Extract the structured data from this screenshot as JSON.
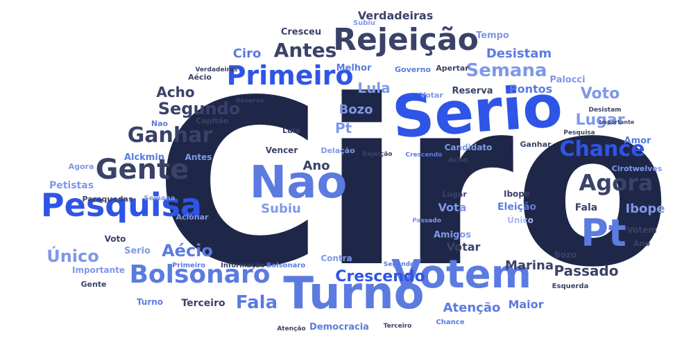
{
  "words": [
    {
      "text": "Ciro",
      "color": "navy"
    },
    {
      "text": "Serio",
      "color": "royal"
    },
    {
      "text": "Turno",
      "color": "mid"
    },
    {
      "text": "Nao",
      "color": "mid"
    },
    {
      "text": "Votem",
      "color": "mid"
    },
    {
      "text": "Pt",
      "color": "mid"
    },
    {
      "text": "Pesquisa",
      "color": "royal"
    },
    {
      "text": "Rejeição",
      "color": "slate"
    },
    {
      "text": "Primeiro",
      "color": "royal"
    },
    {
      "text": "Gente",
      "color": "slate"
    },
    {
      "text": "Bolsonaro",
      "color": "mid"
    },
    {
      "text": "Agora",
      "color": "slate"
    },
    {
      "text": "Chance",
      "color": "royal"
    },
    {
      "text": "Ganhar",
      "color": "slate"
    },
    {
      "text": "Antes",
      "color": "slate"
    },
    {
      "text": "Semana",
      "color": "peri"
    },
    {
      "text": "Segundo",
      "color": "slate"
    },
    {
      "text": "Fala",
      "color": "mid"
    },
    {
      "text": "Crescendo",
      "color": "royal"
    },
    {
      "text": "Único",
      "color": "peri"
    },
    {
      "text": "Aécio",
      "color": "mid"
    },
    {
      "text": "Lugar",
      "color": "peri"
    },
    {
      "text": "Voto",
      "color": "peri"
    },
    {
      "text": "Passado",
      "color": "slate"
    },
    {
      "text": "Lula",
      "color": "peri"
    },
    {
      "text": "Desistam",
      "color": "mid"
    },
    {
      "text": "Verdadeiras",
      "color": "slate"
    },
    {
      "text": "Acho",
      "color": "slate"
    },
    {
      "text": "Bozo",
      "color": "peri"
    },
    {
      "text": "Pontos",
      "color": "mid"
    },
    {
      "text": "Ano",
      "color": "slate"
    },
    {
      "text": "Subiu",
      "color": "peri"
    },
    {
      "text": "Ibope",
      "color": "peri"
    },
    {
      "text": "Marina",
      "color": "slate"
    },
    {
      "text": "Votar",
      "color": "slate"
    },
    {
      "text": "Atenção",
      "color": "mid"
    },
    {
      "text": "Maior",
      "color": "mid"
    },
    {
      "text": "Ciro",
      "color": "mid"
    },
    {
      "text": "Melhor",
      "color": "mid"
    },
    {
      "text": "Reserva",
      "color": "slate"
    },
    {
      "text": "Cresceu",
      "color": "slate"
    },
    {
      "text": "Tempo",
      "color": "peri"
    },
    {
      "text": "Palocci",
      "color": "peri"
    },
    {
      "text": "Amor",
      "color": "mid"
    },
    {
      "text": "Pt",
      "color": "peri"
    },
    {
      "text": "Vota",
      "color": "peri"
    },
    {
      "text": "Terceiro",
      "color": "slate"
    },
    {
      "text": "Alckmin",
      "color": "mid"
    },
    {
      "text": "Petistas",
      "color": "peri"
    },
    {
      "text": "Democracia",
      "color": "mid"
    },
    {
      "text": "Amigos",
      "color": "peri"
    },
    {
      "text": "Contra",
      "color": "peri"
    },
    {
      "text": "Serio",
      "color": "peri"
    },
    {
      "text": "Voto",
      "color": "slate"
    },
    {
      "text": "Importante",
      "color": "peri"
    },
    {
      "text": "Fala",
      "color": "slate"
    },
    {
      "text": "Eleição",
      "color": "mid"
    },
    {
      "text": "Único",
      "color": "light"
    },
    {
      "text": "Votem",
      "color": "slate"
    },
    {
      "text": "Ano",
      "color": "slate"
    },
    {
      "text": "Bozo",
      "color": "slate"
    },
    {
      "text": "Ibope",
      "color": "slate"
    },
    {
      "text": "Lugar",
      "color": "slate"
    },
    {
      "text": "Lula",
      "color": "slate"
    },
    {
      "text": "Vencer",
      "color": "slate"
    },
    {
      "text": "Delação",
      "color": "peri"
    },
    {
      "text": "Candidato",
      "color": "peri"
    },
    {
      "text": "Ganhar",
      "color": "slate"
    },
    {
      "text": "Apertar",
      "color": "slate"
    },
    {
      "text": "Governo",
      "color": "mid"
    },
    {
      "text": "Votar",
      "color": "peri"
    },
    {
      "text": "Aécio",
      "color": "slate"
    },
    {
      "text": "Capitão",
      "color": "slate"
    },
    {
      "text": "Nao",
      "color": "mid"
    },
    {
      "text": "Antes",
      "color": "peri"
    },
    {
      "text": "Agora",
      "color": "peri"
    },
    {
      "text": "Paraquedas",
      "color": "slate"
    },
    {
      "text": "Semana",
      "color": "peri"
    },
    {
      "text": "Acionar",
      "color": "peri"
    },
    {
      "text": "Primeiro",
      "color": "mid"
    },
    {
      "text": "Informação",
      "color": "slate"
    },
    {
      "text": "Bolsonaro",
      "color": "mid"
    },
    {
      "text": "Gente",
      "color": "slate"
    },
    {
      "text": "Turno",
      "color": "mid"
    },
    {
      "text": "Esquerda",
      "color": "slate"
    },
    {
      "text": "Chance",
      "color": "mid"
    },
    {
      "text": "Atenção",
      "color": "slate"
    },
    {
      "text": "Terceiro",
      "color": "slate"
    },
    {
      "text": "Subiu",
      "color": "peri"
    },
    {
      "text": "Verdadeiras",
      "color": "slate"
    },
    {
      "text": "Reserva",
      "color": "slate"
    },
    {
      "text": "Rejeição",
      "color": "slate"
    },
    {
      "text": "Crescendo",
      "color": "mid"
    },
    {
      "text": "Acho",
      "color": "slate"
    },
    {
      "text": "Passado",
      "color": "peri"
    },
    {
      "text": "Segundo",
      "color": "mid"
    },
    {
      "text": "Pesquisa",
      "color": "slate"
    },
    {
      "text": "Desistam",
      "color": "slate"
    },
    {
      "text": "Importante",
      "color": "slate"
    },
    {
      "text": "Cirotwelves",
      "color": "peri"
    }
  ]
}
